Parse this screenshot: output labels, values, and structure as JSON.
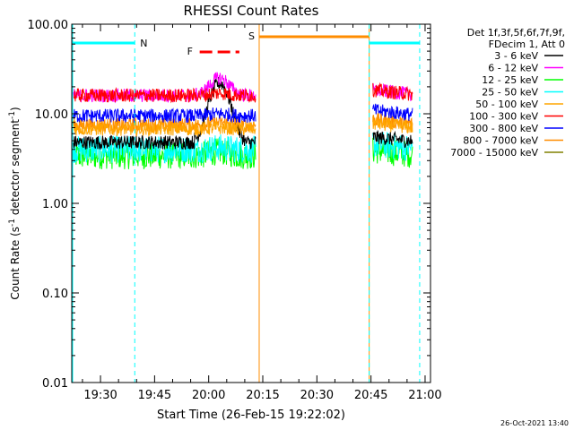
{
  "chart_data": {
    "type": "line",
    "title": "RHESSI Count Rates",
    "xlabel": "Start Time (26-Feb-15 19:22:02)",
    "ylabel_main": "Count Rate (s",
    "ylabel_sup": "-1",
    "ylabel_tail": " detector segment",
    "ylabel_sup2": "-1",
    "ylabel_end": ")",
    "y_scale": "log",
    "ylim": [
      0.01,
      100
    ],
    "xlim_minutes": [
      19.37,
      21.0
    ],
    "x_ticks": [
      "19:30",
      "19:45",
      "20:00",
      "20:15",
      "20:30",
      "20:45",
      "21:00"
    ],
    "x_tick_minutes": [
      1170,
      1185,
      1200,
      1215,
      1230,
      1245,
      1260
    ],
    "y_ticks": [
      "0.01",
      "0.10",
      "1.00",
      "10.00",
      "100.00"
    ],
    "y_tick_values": [
      0.01,
      0.1,
      1,
      10,
      100
    ],
    "x_range_minutes": [
      1162.03,
      1261.5
    ],
    "legend_header": [
      "Det 1f,3f,5f,6f,7f,9f,",
      "FDecim 1, Att 0"
    ],
    "series": [
      {
        "name": "3 - 6 keV",
        "color": "#000000",
        "level": 4.8,
        "flare_peak": 22
      },
      {
        "name": "6 - 12 keV",
        "color": "#ff00ff",
        "level": 16,
        "flare_peak": 25
      },
      {
        "name": "12 - 25 keV",
        "color": "#00ff00",
        "level": 3.4,
        "flare_peak": 3.8
      },
      {
        "name": "25 - 50 keV",
        "color": "#00ffff",
        "level": 4.0,
        "flare_peak": 4.2
      },
      {
        "name": "50 - 100 keV",
        "color": "#ffa500",
        "level": 6.8,
        "flare_peak": 7.0
      },
      {
        "name": "100 - 300 keV",
        "color": "#ff0000",
        "level": 16,
        "flare_peak": 17
      },
      {
        "name": "300 - 800 keV",
        "color": "#0000ff",
        "level": 9.5,
        "flare_peak": 10
      },
      {
        "name": "800 - 7000 keV",
        "color": "#ff8c00",
        "level": 7.5,
        "flare_peak": 8
      },
      {
        "name": "7000 - 15000 keV",
        "color": "#808000",
        "level": 0,
        "flare_peak": 0
      }
    ],
    "segments": [
      {
        "start": 1162.5,
        "end": 1213.0
      },
      {
        "start": 1245.5,
        "end": 1256.5
      }
    ],
    "annotations": {
      "night": [
        {
          "label": "N",
          "start": 1162.03,
          "end": 1179.5
        },
        {
          "label": "",
          "start": 1244.5,
          "end": 1258.5
        }
      ],
      "saa": {
        "label": "S",
        "start": 1214.0,
        "end": 1244.5
      },
      "flare": {
        "label": "F",
        "start": 1197.5,
        "end": 1208.5
      }
    },
    "dashed_lines_minutes": [
      1179.5,
      1244.5,
      1258.5
    ],
    "solid_lines_minutes": [
      1214.0,
      1244.5
    ],
    "timestamp": "26-Oct-2021 13:40"
  }
}
